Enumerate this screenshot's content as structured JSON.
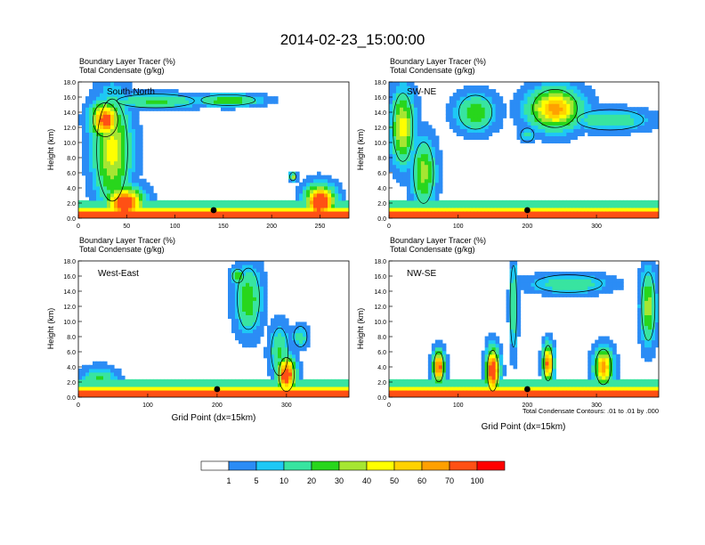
{
  "title": "2014-02-23_15:00:00",
  "colors": {
    "levels": [
      "#ffffff",
      "#2b8cf5",
      "#1ec8f5",
      "#38e4a0",
      "#28d61c",
      "#a6e632",
      "#ffff00",
      "#ffd200",
      "#ffa000",
      "#ff5014",
      "#ff0000"
    ],
    "contour": "#000000"
  },
  "colorbar": {
    "labels": [
      "1",
      "5",
      "10",
      "20",
      "30",
      "40",
      "50",
      "60",
      "70",
      "100"
    ]
  },
  "panels": [
    {
      "id": "south-north",
      "header_line1": "Boundary Layer Tracer   (%)",
      "header_line2": "Total Condensate   (g/kg)",
      "section_label": "South-North",
      "ylabel": "Height (km)",
      "xlabel": "",
      "xticks": [
        "0",
        "50",
        "100",
        "150",
        "200",
        "250"
      ],
      "yticks": [
        "0.0",
        "2.0",
        "4.0",
        "6.0",
        "8.0",
        "10.0",
        "12.0",
        "14.0",
        "16.0",
        "18.0"
      ],
      "footer_note": ""
    },
    {
      "id": "sw-ne",
      "header_line1": "Boundary Layer Tracer   (%)",
      "header_line2": "Total Condensate   (g/kg)",
      "section_label": "SW-NE",
      "ylabel": "Height (km)",
      "xlabel": "",
      "xticks": [
        "0",
        "100",
        "200",
        "300"
      ],
      "yticks": [
        "0.0",
        "2.0",
        "4.0",
        "6.0",
        "8.0",
        "10.0",
        "12.0",
        "14.0",
        "16.0",
        "18.0"
      ],
      "footer_note": ""
    },
    {
      "id": "west-east",
      "header_line1": "Boundary Layer Tracer   (%)",
      "header_line2": "Total Condensate   (g/kg)",
      "section_label": "West-East",
      "ylabel": "Height (km)",
      "xlabel": "Grid Point (dx=15km)",
      "xticks": [
        "0",
        "100",
        "200",
        "300"
      ],
      "yticks": [
        "0.0",
        "2.0",
        "4.0",
        "6.0",
        "8.0",
        "10.0",
        "12.0",
        "14.0",
        "16.0",
        "18.0"
      ],
      "footer_note": ""
    },
    {
      "id": "nw-se",
      "header_line1": "Boundary Layer Tracer   (%)",
      "header_line2": "Total Condensate   (g/kg)",
      "section_label": "NW-SE",
      "ylabel": "Height (km)",
      "xlabel": "Grid Point (dx=15km)",
      "xticks": [
        "0",
        "100",
        "200",
        "300"
      ],
      "yticks": [
        "0.0",
        "2.0",
        "4.0",
        "6.0",
        "8.0",
        "10.0",
        "12.0",
        "14.0",
        "16.0",
        "18.0"
      ],
      "footer_note": "Total Condensate Contours: .01 to .01 by .000"
    }
  ],
  "chart_data": {
    "type": "heatmap",
    "title": "2014-02-23_15:00:00",
    "colorbar_levels": [
      1,
      5,
      10,
      20,
      30,
      40,
      50,
      60,
      70,
      100
    ],
    "sections": [
      {
        "name": "South-North",
        "xlim": [
          0,
          280
        ],
        "xticks": [
          0,
          50,
          100,
          150,
          200,
          250
        ],
        "ylim": [
          0,
          18
        ],
        "marker_x": 140,
        "blobs": [
          {
            "x": 35,
            "z": 9.0,
            "dx": 20,
            "dz": 7.5,
            "v": 45
          },
          {
            "x": 28,
            "z": 13.0,
            "dx": 16,
            "dz": 2.5,
            "v": 80
          },
          {
            "x": 80,
            "z": 15.5,
            "dx": 50,
            "dz": 1.0,
            "v": 22
          },
          {
            "x": 155,
            "z": 15.6,
            "dx": 35,
            "dz": 0.8,
            "v": 30
          },
          {
            "x": 48,
            "z": 2.0,
            "dx": 20,
            "dz": 2.2,
            "v": 95
          },
          {
            "x": 250,
            "z": 2.2,
            "dx": 16,
            "dz": 2.2,
            "v": 100
          },
          {
            "x": 222,
            "z": 5.5,
            "dx": 4,
            "dz": 0.6,
            "v": 35
          }
        ]
      },
      {
        "name": "SW-NE",
        "xlim": [
          0,
          390
        ],
        "xticks": [
          0,
          100,
          200,
          300
        ],
        "ylim": [
          0,
          18
        ],
        "marker_x": 200,
        "blobs": [
          {
            "x": 20,
            "z": 12.0,
            "dx": 18,
            "dz": 5.0,
            "v": 45
          },
          {
            "x": 50,
            "z": 6.0,
            "dx": 18,
            "dz": 4.5,
            "v": 35
          },
          {
            "x": 125,
            "z": 14.0,
            "dx": 30,
            "dz": 2.5,
            "v": 28
          },
          {
            "x": 240,
            "z": 14.5,
            "dx": 40,
            "dz": 2.8,
            "v": 65
          },
          {
            "x": 320,
            "z": 13.0,
            "dx": 60,
            "dz": 1.5,
            "v": 18
          },
          {
            "x": 200,
            "z": 11.0,
            "dx": 12,
            "dz": 1.0,
            "v": 12
          }
        ]
      },
      {
        "name": "West-East",
        "xlim": [
          0,
          390
        ],
        "xticks": [
          0,
          100,
          200,
          300
        ],
        "ylim": [
          0,
          18
        ],
        "marker_x": 200,
        "blobs": [
          {
            "x": 245,
            "z": 13.0,
            "dx": 20,
            "dz": 4.5,
            "v": 28
          },
          {
            "x": 230,
            "z": 16.0,
            "dx": 10,
            "dz": 1.0,
            "v": 32
          },
          {
            "x": 290,
            "z": 6.0,
            "dx": 15,
            "dz": 3.5,
            "v": 22
          },
          {
            "x": 320,
            "z": 8.0,
            "dx": 12,
            "dz": 1.5,
            "v": 15
          },
          {
            "x": 30,
            "z": 2.5,
            "dx": 25,
            "dz": 1.5,
            "v": 22
          },
          {
            "x": 300,
            "z": 3.0,
            "dx": 14,
            "dz": 2.5,
            "v": 90
          }
        ]
      },
      {
        "name": "NW-SE",
        "xlim": [
          0,
          390
        ],
        "xticks": [
          0,
          100,
          200,
          300
        ],
        "ylim": [
          0,
          18
        ],
        "marker_x": 200,
        "blobs": [
          {
            "x": 150,
            "z": 3.5,
            "dx": 10,
            "dz": 3.0,
            "v": 100
          },
          {
            "x": 72,
            "z": 4.0,
            "dx": 9,
            "dz": 2.2,
            "v": 80
          },
          {
            "x": 230,
            "z": 4.5,
            "dx": 8,
            "dz": 2.6,
            "v": 75
          },
          {
            "x": 310,
            "z": 4.0,
            "dx": 14,
            "dz": 2.6,
            "v": 65
          },
          {
            "x": 260,
            "z": 15.0,
            "dx": 60,
            "dz": 1.3,
            "v": 18
          },
          {
            "x": 375,
            "z": 12.0,
            "dx": 12,
            "dz": 5.0,
            "v": 35
          },
          {
            "x": 180,
            "z": 12.0,
            "dx": 6,
            "dz": 6.0,
            "v": 22
          }
        ]
      }
    ]
  }
}
